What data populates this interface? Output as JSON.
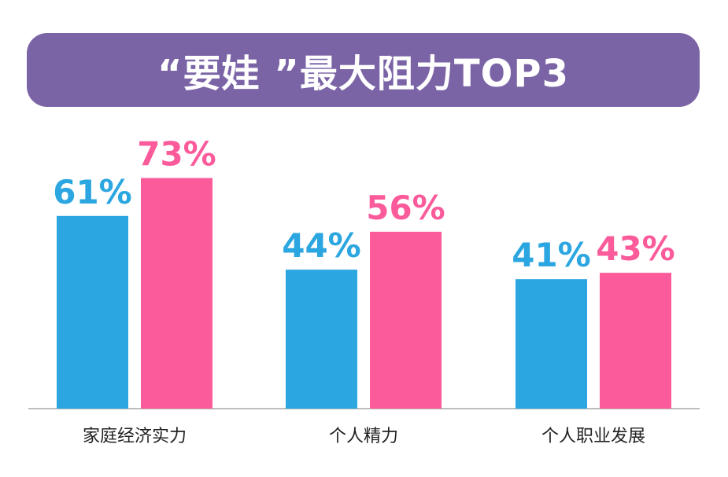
{
  "chart_data": {
    "type": "bar",
    "title": "“要娃 ”最大阻力TOP3",
    "categories": [
      "家庭经济实力",
      "个人精力",
      "个人职业发展"
    ],
    "series": [
      {
        "values": [
          61,
          44,
          41
        ]
      },
      {
        "values": [
          73,
          56,
          43
        ]
      }
    ],
    "value_suffix": "%",
    "ylim": [
      0,
      100
    ],
    "grid": false,
    "legend": "none"
  },
  "colors": {
    "title_banner": "#7b64a6",
    "series_0": "#2ba6e0",
    "series_1": "#fb5b9a",
    "baseline": "#bdbdbd",
    "category_text": "#222222"
  }
}
